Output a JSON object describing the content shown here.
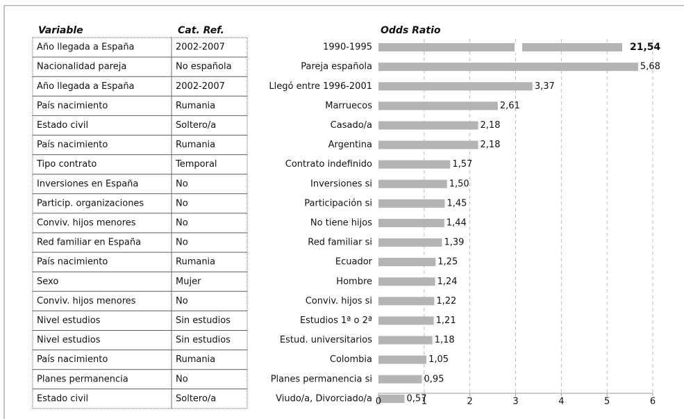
{
  "table": {
    "headers": [
      "Variable",
      "Cat. Ref."
    ],
    "rows": [
      [
        "Año llegada a España",
        "2002-2007"
      ],
      [
        "Nacionalidad pareja",
        "No española"
      ],
      [
        "Año llegada a España",
        "2002-2007"
      ],
      [
        "País nacimiento",
        "Rumania"
      ],
      [
        "Estado civil",
        "Soltero/a"
      ],
      [
        "País nacimiento",
        "Rumania"
      ],
      [
        "Tipo contrato",
        "Temporal"
      ],
      [
        "Inversiones en España",
        "No"
      ],
      [
        "Particip. organizaciones",
        "No"
      ],
      [
        "Conviv. hijos menores",
        "No"
      ],
      [
        "Red familiar en España",
        "No"
      ],
      [
        "País nacimiento",
        "Rumania"
      ],
      [
        "Sexo",
        "Mujer"
      ],
      [
        "Conviv. hijos menores",
        "No"
      ],
      [
        "Nivel estudios",
        "Sin estudios"
      ],
      [
        "Nivel estudios",
        "Sin estudios"
      ],
      [
        "País nacimiento",
        "Rumania"
      ],
      [
        "Planes permanencia",
        "No"
      ],
      [
        "Estado civil",
        "Soltero/a"
      ]
    ]
  },
  "chart_data": {
    "type": "bar",
    "orientation": "horizontal",
    "title": "Odds Ratio",
    "color": "#b4b4b4",
    "grid": true,
    "categories": [
      "1990-1995",
      "Pareja española",
      "Llegó entre 1996-2001",
      "Marruecos",
      "Casado/a",
      "Argentina",
      "Contrato indefinido",
      "Inversiones si",
      "Participación si",
      "No tiene hijos",
      "Red familiar si",
      "Ecuador",
      "Hombre",
      "Conviv. hijos si",
      "Estudios 1ª o 2ª",
      "Estud. universitarios",
      "Colombia",
      "Planes permanencia si",
      "Viudo/a, Divorciado/a"
    ],
    "values": [
      21.54,
      5.68,
      3.37,
      2.61,
      2.18,
      2.18,
      1.57,
      1.5,
      1.45,
      1.44,
      1.39,
      1.25,
      1.24,
      1.22,
      1.21,
      1.18,
      1.05,
      0.95,
      0.57
    ],
    "value_labels": [
      "21,54",
      "5,68",
      "3,37",
      "2,61",
      "2,18",
      "2,18",
      "1,57",
      "1,50",
      "1,45",
      "1,44",
      "1,39",
      "1,25",
      "1,24",
      "1,22",
      "1,21",
      "1,18",
      "1,05",
      "0,95",
      "0,57"
    ],
    "xlim": [
      0,
      6
    ],
    "xticks": [
      0,
      1,
      2,
      3,
      4,
      5,
      6
    ]
  }
}
